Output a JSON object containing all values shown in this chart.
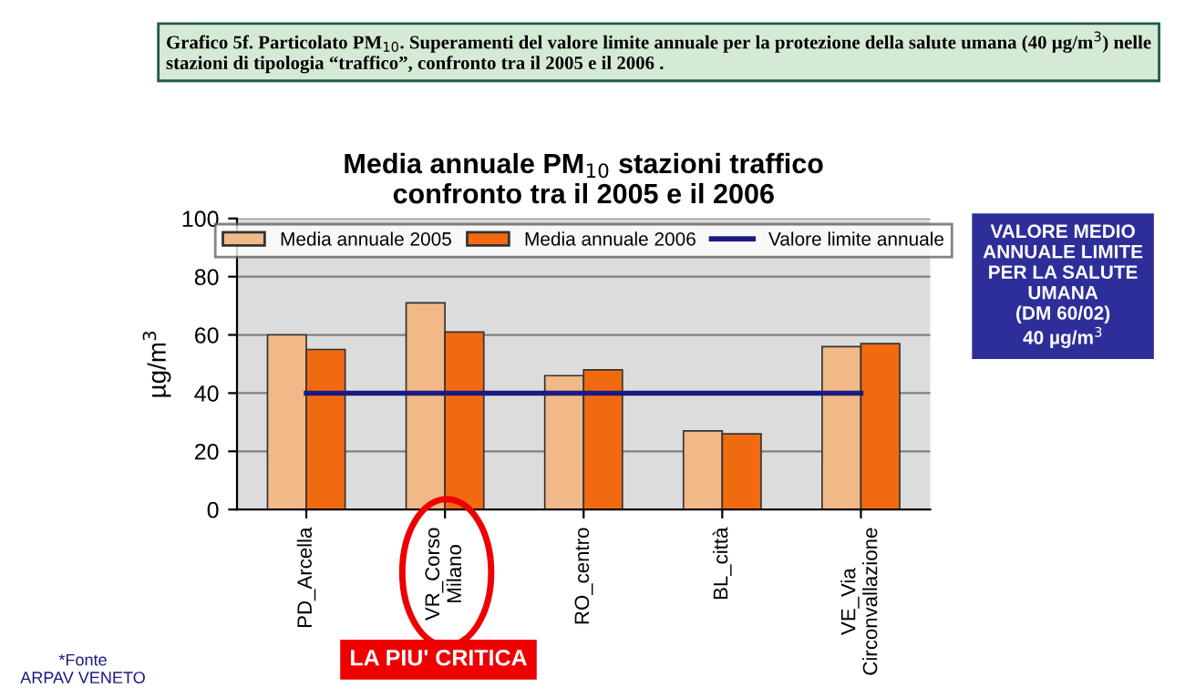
{
  "chart_data": {
    "type": "bar",
    "title": "Media annuale PM$_{10}$ stazioni traffico\nconfronto tra il 2005 e il 2006",
    "ylabel": "µg/m$^{3}$",
    "categories": [
      "PD_Arcella",
      "VR_Corso\nMilano",
      "RO_centro",
      "BL_città",
      "VE_Via\nCirconvallazione"
    ],
    "series": [
      {
        "name": "Media annuale 2005",
        "color": "#f0b987",
        "values": [
          60,
          71,
          46,
          27,
          56
        ]
      },
      {
        "name": "Media annuale 2006",
        "color": "#f26a0f",
        "values": [
          55,
          61,
          48,
          26,
          57
        ]
      },
      {
        "name": "Valore limite annuale",
        "type": "line",
        "color": "#1a1a80",
        "values": [
          40,
          40,
          40,
          40,
          40
        ]
      }
    ],
    "ylim": [
      0,
      100
    ],
    "yticks": [
      0,
      20,
      40,
      60,
      80,
      100
    ],
    "grid": "y",
    "legend": "top",
    "marker": "none",
    "line_style": "solid",
    "annotations": [
      "Grafico 5f. Particolato PM$_{10}$. Superamenti del valore limite annuale per la protezione della salute umana (40 µg/m$^{3}$) nelle stazioni di tipologia “traffico”, confronto tra il 2005 e il 2006 .",
      "VALORE MEDIO\nANNUALE LIMITE\nPER LA SALUTE\nUMANA\n(DM 60/02)\n40 µg/m$^{3}$",
      "LA PIU' CRITICA",
      "*Fonte\nARPAV VENETO"
    ]
  }
}
